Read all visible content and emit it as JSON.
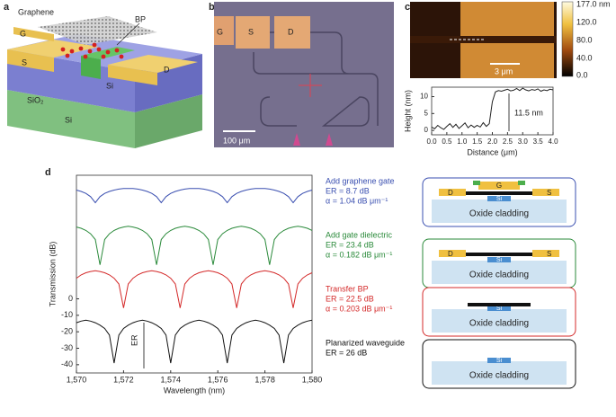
{
  "panel_labels": [
    "a",
    "b",
    "c",
    "d"
  ],
  "panel_a": {
    "labels": [
      "Graphene",
      "BP",
      "G",
      "D",
      "S",
      "Si",
      "SiO₂",
      "Si"
    ]
  },
  "panel_b": {
    "labels": [
      "G",
      "S",
      "D"
    ],
    "scale_bar": "100 μm"
  },
  "panel_c_image": {
    "scale_bar": "3 μm",
    "colorbar": [
      "177.0 nm",
      "120.0",
      "80.0",
      "40.0",
      "0.0"
    ]
  },
  "chart_data": [
    {
      "type": "line",
      "xlabel": "Distance (μm)",
      "ylabel": "Height (nm)",
      "annotation": "11.5 nm",
      "color": "#222",
      "x": [
        0,
        0.1,
        0.2,
        0.3,
        0.4,
        0.5,
        0.6,
        0.7,
        0.8,
        0.9,
        1.0,
        1.1,
        1.2,
        1.3,
        1.4,
        1.5,
        1.6,
        1.7,
        1.8,
        1.9,
        2.0,
        2.1,
        2.2,
        2.3,
        2.4,
        2.5,
        2.6,
        2.7,
        2.8,
        2.9,
        3.0,
        3.1,
        3.2,
        3.3,
        3.4,
        3.5,
        3.6,
        3.7,
        3.8,
        3.9,
        4.0
      ],
      "values": [
        1.0,
        0.5,
        1.5,
        0.8,
        0.3,
        1.2,
        2.0,
        0.9,
        1.8,
        0.6,
        1.4,
        2.2,
        0.8,
        1.6,
        0.9,
        1.5,
        1.0,
        2.3,
        1.2,
        2.0,
        8.5,
        11.4,
        11.8,
        11.6,
        11.9,
        12.2,
        11.7,
        11.9,
        12.4,
        11.8,
        12.5,
        12.0,
        11.7,
        12.1,
        11.9,
        12.3,
        11.6,
        12.0,
        11.8,
        12.2,
        12.0
      ],
      "xlim": [
        0,
        4
      ],
      "ylim": [
        -1.3,
        12.8
      ],
      "xticks": [
        {
          "value": 0,
          "label": "0.0"
        },
        0.5,
        {
          "value": 1,
          "label": "1.0"
        },
        1.5,
        {
          "value": 2,
          "label": "2.0"
        },
        2.5,
        {
          "value": 3,
          "label": "3.0"
        },
        3.5,
        {
          "value": 4,
          "label": "4.0"
        }
      ],
      "yticks": [
        0,
        5,
        10
      ]
    },
    {
      "type": "line",
      "xlabel": "Wavelength (nm)",
      "ylabel": "Transmission (dB)",
      "annotation": "ER",
      "x": [
        1570,
        1570.2,
        1570.4,
        1570.6,
        1570.8,
        1571,
        1571.2,
        1571.4,
        1571.6,
        1571.8,
        1572,
        1572.2,
        1572.4,
        1572.6,
        1572.8,
        1573,
        1573.2,
        1573.4,
        1573.6,
        1573.8,
        1574,
        1574.2,
        1574.4,
        1574.6,
        1574.8,
        1575,
        1575.2,
        1575.4,
        1575.6,
        1575.8,
        1576,
        1576.2,
        1576.4,
        1576.6,
        1576.8,
        1577,
        1577.2,
        1577.4,
        1577.6,
        1577.8,
        1578,
        1578.2,
        1578.4,
        1578.6,
        1578.8,
        1579,
        1579.2,
        1579.4,
        1579.6,
        1579.8,
        1580
      ],
      "series": [
        {
          "name": "Add graphene gate",
          "details": [
            "ER = 8.7 dB",
            "α = 1.04 dB μm⁻¹"
          ],
          "color": "#3a4fb0",
          "values": [
            66,
            65.2,
            64,
            62,
            58.3,
            62,
            64,
            65.2,
            66,
            66.6,
            66.9,
            67,
            66.9,
            66.6,
            66,
            65.2,
            64,
            62,
            58.3,
            62,
            64,
            65.2,
            66,
            66.6,
            66.9,
            67,
            66.9,
            66.6,
            66,
            65.2,
            64,
            62,
            58.3,
            62,
            64,
            65.2,
            66,
            66.6,
            66.9,
            67,
            66.9,
            66.6,
            66,
            65.2,
            64,
            62,
            58.3,
            62,
            64,
            65.2,
            66
          ]
        },
        {
          "name": "Add gate dielectric",
          "details": [
            "ER = 23.4 dB",
            "α = 0.182 dB μm⁻¹"
          ],
          "color": "#2a8a3a",
          "values": [
            43.6,
            42.8,
            41.5,
            39.5,
            36,
            20.6,
            36,
            39.5,
            41.5,
            42.8,
            43.6,
            44,
            43.6,
            42.8,
            41.5,
            39.5,
            36,
            20.6,
            36,
            39.5,
            41.5,
            42.8,
            43.6,
            44,
            43.6,
            42.8,
            41.5,
            39.5,
            36,
            20.6,
            36,
            39.5,
            41.5,
            42.8,
            43.6,
            44,
            43.6,
            42.8,
            41.5,
            39.5,
            36,
            20.6,
            36,
            39.5,
            41.5,
            42.8,
            43.6,
            44,
            43.6,
            42.8,
            41.5
          ]
        },
        {
          "name": "Transfer BP",
          "details": [
            "ER = 22.5 dB",
            "α = 0.203 dB μm⁻¹"
          ],
          "color": "#d42a2a",
          "values": [
            12.5,
            14.5,
            15.8,
            16.6,
            17,
            16.6,
            15.8,
            14.5,
            12.5,
            9,
            -5.5,
            9,
            12.5,
            14.5,
            15.8,
            16.6,
            17,
            16.6,
            15.8,
            14.5,
            12.5,
            9,
            -5.5,
            9,
            12.5,
            14.5,
            15.8,
            16.6,
            17,
            16.6,
            15.8,
            14.5,
            12.5,
            9,
            -5.5,
            9,
            12.5,
            14.5,
            15.8,
            16.6,
            17,
            16.6,
            15.8,
            14.5,
            12.5,
            9,
            -5.5,
            9,
            12.5,
            14.5,
            15.8
          ]
        },
        {
          "name": "Planarized waveguide",
          "details": [
            "ER = 26 dB"
          ],
          "color": "#111111",
          "values": [
            -14.5,
            -13.5,
            -13,
            -13.5,
            -14.5,
            -16,
            -18,
            -22,
            -39,
            -22,
            -18,
            -16,
            -14.5,
            -13.5,
            -13,
            -13.5,
            -14.5,
            -16,
            -18,
            -22,
            -39,
            -22,
            -18,
            -16,
            -14.5,
            -13.5,
            -13,
            -13.5,
            -14.5,
            -16,
            -18,
            -22,
            -39,
            -22,
            -18,
            -16,
            -14.5,
            -13.5,
            -13,
            -13.5,
            -14.5,
            -16,
            -18,
            -22,
            -39,
            -22,
            -18,
            -16,
            -14.5,
            -13.5,
            -13
          ]
        }
      ],
      "xlim": [
        1570,
        1580
      ],
      "ylim": [
        -45,
        75
      ],
      "xticks": [
        {
          "value": 1570,
          "label": "1,570"
        },
        {
          "value": 1572,
          "label": "1,572"
        },
        {
          "value": 1574,
          "label": "1,574"
        },
        {
          "value": 1576,
          "label": "1,576"
        },
        {
          "value": 1578,
          "label": "1,578"
        },
        {
          "value": 1580,
          "label": "1,580"
        }
      ],
      "yticks": [
        0,
        -10,
        -20,
        -30,
        -40
      ]
    }
  ],
  "cross_sections": [
    {
      "labels": {
        "left": "D",
        "top": "G",
        "right": "S",
        "core": "Si",
        "cladding": "Oxide cladding"
      }
    },
    {
      "labels": {
        "left": "D",
        "right": "S",
        "core": "Si",
        "cladding": "Oxide cladding"
      }
    },
    {
      "labels": {
        "core": "Si",
        "cladding": "Oxide cladding"
      }
    },
    {
      "labels": {
        "core": "Si",
        "cladding": "Oxide cladding"
      }
    }
  ]
}
